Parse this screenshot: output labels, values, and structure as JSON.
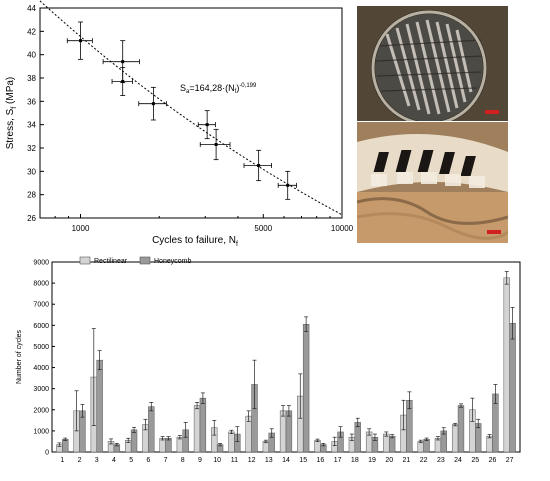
{
  "chart_data": [
    {
      "type": "scatter",
      "xscale": "log",
      "xlim": [
        700,
        10000
      ],
      "ylim": [
        26,
        44
      ],
      "xticks": [
        1000,
        5000,
        10000
      ],
      "yticks": [
        26,
        28,
        30,
        32,
        34,
        36,
        38,
        40,
        42,
        44
      ],
      "xlabel": "Cycles to failure, N",
      "xlabel_sub": "f",
      "ylabel": "Stress, S",
      "ylabel_sub": "f",
      "ylabel_unit": " (MPa)",
      "annotation": "S",
      "annotation_sub": "a",
      "annotation_mid": "=164,28·(N",
      "annotation_sub2": "f",
      "annotation_end": ")",
      "annotation_exp": "-0,199",
      "fit": {
        "a": 164.28,
        "b": -0.199
      },
      "points": [
        {
          "x": 1000,
          "y": 41.2,
          "xerr": 110,
          "yerr": 1.6
        },
        {
          "x": 1450,
          "y": 39.4,
          "xerr": 230,
          "yerr": 1.8
        },
        {
          "x": 1450,
          "y": 37.7,
          "xerr": 130,
          "yerr": 1.2
        },
        {
          "x": 1900,
          "y": 35.8,
          "xerr": 230,
          "yerr": 1.4
        },
        {
          "x": 3050,
          "y": 34.0,
          "xerr": 230,
          "yerr": 1.2
        },
        {
          "x": 3300,
          "y": 32.3,
          "xerr": 430,
          "yerr": 1.3
        },
        {
          "x": 4800,
          "y": 30.5,
          "xerr": 580,
          "yerr": 1.3
        },
        {
          "x": 6200,
          "y": 28.8,
          "xerr": 500,
          "yerr": 1.2
        }
      ]
    },
    {
      "type": "bar",
      "ylabel": "Number of cycles",
      "ylim": [
        0,
        9000
      ],
      "yticks": [
        0,
        1000,
        2000,
        3000,
        4000,
        5000,
        6000,
        7000,
        8000,
        9000
      ],
      "categories": [
        "1",
        "2",
        "3",
        "4",
        "5",
        "6",
        "7",
        "8",
        "9",
        "10",
        "11",
        "12",
        "13",
        "14",
        "15",
        "16",
        "17",
        "18",
        "19",
        "20",
        "21",
        "22",
        "23",
        "24",
        "25",
        "26",
        "27"
      ],
      "legend_position": "top-left",
      "series": [
        {
          "name": "Rectilinear",
          "color": "#d4d4d4",
          "values": [
            350,
            1950,
            3550,
            500,
            550,
            1300,
            650,
            700,
            2200,
            1150,
            950,
            1700,
            500,
            1950,
            2650,
            550,
            500,
            700,
            950,
            850,
            1750,
            500,
            650,
            1300,
            2000,
            750,
            8250
          ],
          "errors": [
            80,
            950,
            2300,
            120,
            100,
            250,
            80,
            80,
            150,
            350,
            80,
            250,
            60,
            250,
            1050,
            60,
            200,
            150,
            150,
            100,
            700,
            60,
            80,
            60,
            550,
            80,
            300
          ]
        },
        {
          "name": "Honeycomb",
          "color": "#9a9a9a",
          "values": [
            600,
            1950,
            4350,
            350,
            1050,
            2150,
            650,
            1050,
            2550,
            350,
            850,
            3200,
            900,
            1950,
            6050,
            350,
            950,
            1400,
            700,
            750,
            2450,
            600,
            1000,
            2200,
            1350,
            2750,
            6100
          ],
          "errors": [
            60,
            300,
            450,
            60,
            120,
            200,
            80,
            350,
            250,
            60,
            350,
            1150,
            200,
            250,
            350,
            60,
            250,
            200,
            150,
            80,
            400,
            60,
            150,
            80,
            200,
            450,
            750
          ]
        }
      ]
    }
  ]
}
